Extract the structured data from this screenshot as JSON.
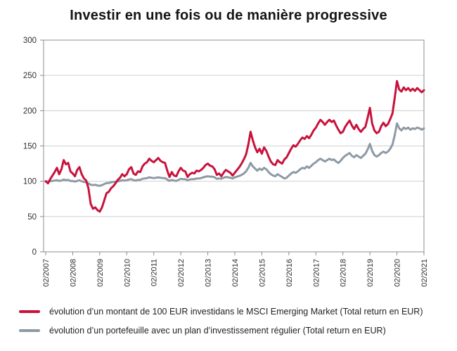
{
  "title": "Investir en une fois ou de manière progressive",
  "axes": {
    "y_ticks": [
      0,
      50,
      100,
      150,
      200,
      250,
      300
    ],
    "x_tick_labels": [
      "02/2007",
      "02/2008",
      "02/2009",
      "02/2010",
      "02/2011",
      "02/2012",
      "02/2013",
      "02/2014",
      "02/2015",
      "02/2016",
      "02/2017",
      "02/2018",
      "02/2019",
      "02/2020",
      "02/2021"
    ]
  },
  "chart_data": {
    "type": "line",
    "title": "Investir en une fois ou de manière progressive",
    "x_start": "02/2007",
    "x_end": "02/2021",
    "x_frequency": "monthly",
    "x_tick_labels": [
      "02/2007",
      "02/2008",
      "02/2009",
      "02/2010",
      "02/2011",
      "02/2012",
      "02/2013",
      "02/2014",
      "02/2015",
      "02/2016",
      "02/2017",
      "02/2018",
      "02/2019",
      "02/2020",
      "02/2021"
    ],
    "x_tick_step": 12,
    "y_ticks": [
      0,
      50,
      100,
      150,
      200,
      250,
      300
    ],
    "ylim": [
      0,
      300
    ],
    "grid": "horizontal",
    "legend_position": "bottom-left",
    "colors": {
      "grid": "#cfcfcf",
      "frame": "#8c8c8c",
      "text": "#2e2e2e"
    },
    "series": [
      {
        "name": "évolution d’un montant de 100 EUR investidans le MSCI Emerging Market (Total return en EUR)",
        "color": "#C8123C",
        "values": [
          100,
          97,
          103,
          108,
          113,
          119,
          110,
          117,
          130,
          124,
          126,
          114,
          111,
          107,
          116,
          120,
          110,
          104,
          101,
          90,
          68,
          61,
          63,
          59,
          57,
          63,
          73,
          83,
          85,
          90,
          93,
          97,
          102,
          105,
          110,
          107,
          110,
          117,
          120,
          111,
          109,
          114,
          113,
          121,
          125,
          127,
          132,
          129,
          127,
          130,
          133,
          129,
          127,
          126,
          115,
          106,
          113,
          108,
          107,
          114,
          119,
          115,
          114,
          106,
          110,
          112,
          111,
          115,
          114,
          116,
          119,
          123,
          125,
          122,
          121,
          117,
          109,
          111,
          107,
          112,
          116,
          114,
          112,
          108,
          112,
          116,
          120,
          125,
          131,
          138,
          152,
          170,
          158,
          148,
          141,
          146,
          139,
          148,
          143,
          135,
          128,
          124,
          123,
          130,
          127,
          125,
          131,
          134,
          140,
          146,
          151,
          149,
          153,
          158,
          162,
          160,
          164,
          161,
          166,
          172,
          176,
          182,
          187,
          184,
          180,
          184,
          187,
          184,
          186,
          179,
          173,
          168,
          170,
          177,
          182,
          186,
          179,
          174,
          180,
          174,
          170,
          174,
          177,
          190,
          204,
          182,
          172,
          168,
          170,
          178,
          183,
          178,
          181,
          188,
          196,
          218,
          242,
          230,
          227,
          233,
          229,
          232,
          228,
          231,
          228,
          232,
          229,
          226,
          229
        ]
      },
      {
        "name": "évolution d’un portefeuille avec un plan d’investissement régulier (Total return en EUR)",
        "color": "#8D9AA5",
        "values": [
          100,
          99.5,
          100,
          100.5,
          101,
          101.5,
          100.5,
          101,
          102.5,
          101.5,
          102,
          100.5,
          100.5,
          99.5,
          100.5,
          101.5,
          100,
          99,
          98.5,
          97,
          95,
          94.5,
          95,
          94,
          93.5,
          94.5,
          96,
          97.5,
          97.5,
          98.5,
          99,
          99.5,
          100,
          100.5,
          101.5,
          101,
          101.5,
          102.5,
          103,
          101.5,
          101,
          102,
          102,
          103.5,
          104,
          104.5,
          105.5,
          105,
          104.5,
          105,
          105.5,
          105,
          104.5,
          104.5,
          102.5,
          100.5,
          102,
          101,
          100.5,
          102,
          103.5,
          103,
          103,
          101.5,
          102.5,
          103,
          103,
          104,
          104,
          104.5,
          105.5,
          106.5,
          107,
          106.5,
          106.5,
          105.5,
          103.5,
          104,
          103.5,
          105,
          106,
          105.5,
          105,
          104,
          105.5,
          106.5,
          107.5,
          109,
          111,
          114,
          119,
          126,
          121,
          118,
          115,
          118,
          116,
          119,
          117,
          113,
          110,
          108,
          107,
          110,
          108,
          106,
          104,
          105,
          108,
          111,
          113,
          112,
          114,
          117,
          119,
          118,
          121,
          119,
          122,
          125,
          127,
          130,
          132,
          130,
          128,
          130,
          132,
          130,
          131,
          128,
          126,
          129,
          133,
          136,
          138,
          140,
          136,
          134,
          137,
          135,
          133,
          136,
          139,
          145,
          153,
          143,
          137,
          135,
          137,
          140,
          142,
          140,
          142,
          146,
          152,
          165,
          182,
          175,
          172,
          176,
          174,
          176,
          173,
          175,
          174,
          176,
          175,
          173,
          175
        ]
      }
    ]
  }
}
